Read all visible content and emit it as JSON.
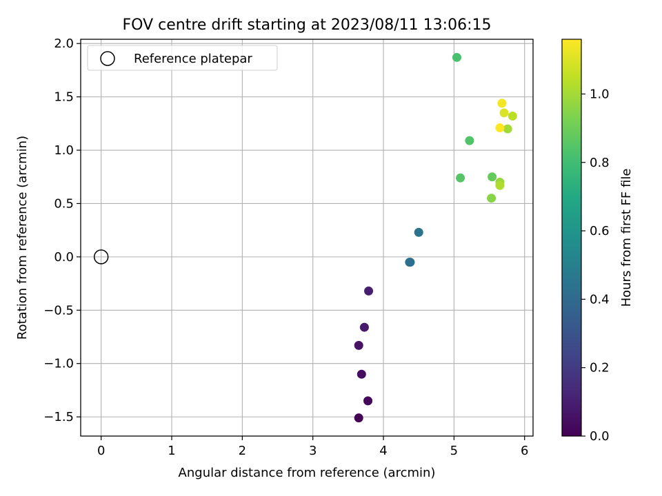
{
  "chart_data": {
    "type": "scatter",
    "title": "FOV centre drift starting at 2023/08/11 13:06:15",
    "xlabel": "Angular distance from reference (arcmin)",
    "ylabel": "Rotation from reference (arcmin)",
    "xlim": [
      -0.29,
      6.12
    ],
    "ylim": [
      -1.68,
      2.04
    ],
    "xticks": [
      0,
      1,
      2,
      3,
      4,
      5,
      6
    ],
    "xtick_labels": [
      "0",
      "1",
      "2",
      "3",
      "4",
      "5",
      "6"
    ],
    "yticks": [
      -1.5,
      -1.0,
      -0.5,
      0.0,
      0.5,
      1.0,
      1.5,
      2.0
    ],
    "ytick_labels": [
      "−1.5",
      "−1.0",
      "−0.5",
      "0.0",
      "0.5",
      "1.0",
      "1.5",
      "2.0"
    ],
    "grid": true,
    "legend": {
      "placement": "top-left",
      "entries": [
        {
          "label": "Reference platepar",
          "marker": "open-circle"
        }
      ]
    },
    "reference_point": {
      "x": 0,
      "y": 0
    },
    "colorbar": {
      "label": "Hours from first FF file",
      "colormap": "viridis",
      "range": [
        0.0,
        1.16
      ],
      "ticks": [
        0.0,
        0.2,
        0.4,
        0.6,
        0.8,
        1.0
      ],
      "tick_labels": [
        "0.0",
        "0.2",
        "0.4",
        "0.6",
        "0.8",
        "1.0"
      ]
    },
    "series": [
      {
        "points": [
          {
            "x": 3.65,
            "y": -1.51,
            "hours": 0.0
          },
          {
            "x": 3.78,
            "y": -1.35,
            "hours": 0.02
          },
          {
            "x": 3.69,
            "y": -1.1,
            "hours": 0.04
          },
          {
            "x": 3.65,
            "y": -0.83,
            "hours": 0.06
          },
          {
            "x": 3.73,
            "y": -0.66,
            "hours": 0.08
          },
          {
            "x": 3.79,
            "y": -0.32,
            "hours": 0.1
          },
          {
            "x": 4.37,
            "y": -0.05,
            "hours": 0.4
          },
          {
            "x": 4.38,
            "y": -0.05,
            "hours": 0.42
          },
          {
            "x": 4.5,
            "y": 0.23,
            "hours": 0.44
          },
          {
            "x": 5.04,
            "y": 1.87,
            "hours": 0.82
          },
          {
            "x": 5.22,
            "y": 1.09,
            "hours": 0.84
          },
          {
            "x": 5.09,
            "y": 0.74,
            "hours": 0.85
          },
          {
            "x": 5.54,
            "y": 0.75,
            "hours": 0.88
          },
          {
            "x": 5.53,
            "y": 0.55,
            "hours": 0.95
          },
          {
            "x": 5.65,
            "y": 0.7,
            "hours": 0.98
          },
          {
            "x": 5.65,
            "y": 0.67,
            "hours": 1.02
          },
          {
            "x": 5.76,
            "y": 1.2,
            "hours": 1.0
          },
          {
            "x": 5.83,
            "y": 1.32,
            "hours": 1.04
          },
          {
            "x": 5.71,
            "y": 1.35,
            "hours": 1.1
          },
          {
            "x": 5.68,
            "y": 1.44,
            "hours": 1.14
          },
          {
            "x": 5.65,
            "y": 1.21,
            "hours": 1.16
          }
        ]
      }
    ]
  }
}
